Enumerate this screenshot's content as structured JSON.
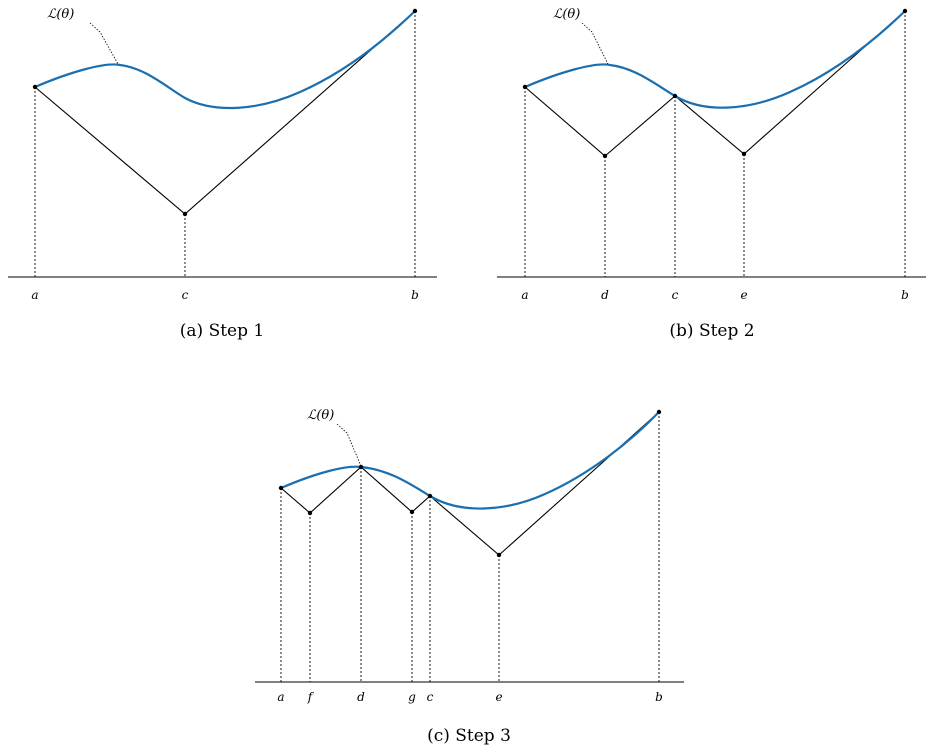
{
  "curve_label": "ℒ(θ)",
  "colors": {
    "curve": "#1a6fb0",
    "lines": "#000000"
  },
  "panels": [
    {
      "caption": "(a)  Step 1",
      "ticks": [
        "a",
        "c",
        "b"
      ]
    },
    {
      "caption": "(b)  Step 2",
      "ticks": [
        "a",
        "d",
        "c",
        "e",
        "b"
      ]
    },
    {
      "caption": "(c)  Step 3",
      "ticks": [
        "a",
        "f",
        "d",
        "g",
        "c",
        "e",
        "b"
      ]
    }
  ]
}
